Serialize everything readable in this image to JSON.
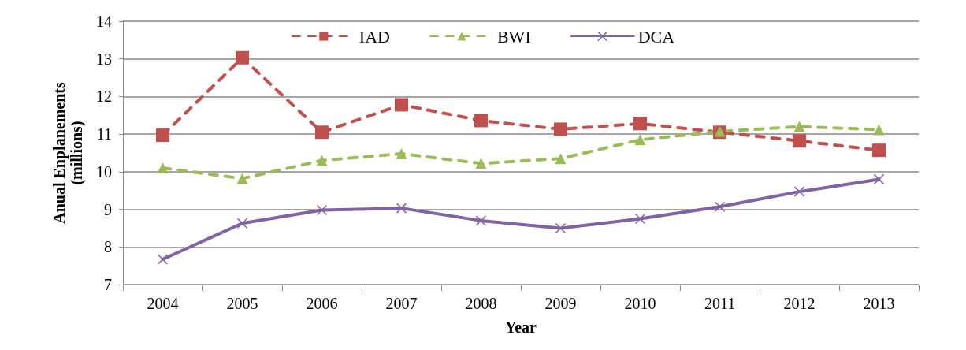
{
  "chart_data": {
    "type": "line",
    "xlabel": "Year",
    "ylabel": "Anual Enplanements\n(millions)",
    "categories": [
      "2004",
      "2005",
      "2006",
      "2007",
      "2008",
      "2009",
      "2010",
      "2011",
      "2012",
      "2013"
    ],
    "series": [
      {
        "name": "IAD",
        "color": "#c0504d",
        "marker": "square",
        "line_style": "dashed",
        "values": [
          10.97,
          13.03,
          11.05,
          11.78,
          11.36,
          11.13,
          11.28,
          11.05,
          10.82,
          10.57
        ]
      },
      {
        "name": "BWI",
        "color": "#9bbb59",
        "marker": "triangle",
        "line_style": "dashed",
        "values": [
          10.1,
          9.82,
          10.3,
          10.48,
          10.22,
          10.35,
          10.85,
          11.07,
          11.2,
          11.12
        ]
      },
      {
        "name": "DCA",
        "color": "#8064a2",
        "marker": "cross",
        "line_style": "solid",
        "values": [
          7.67,
          8.63,
          8.98,
          9.03,
          8.7,
          8.5,
          8.75,
          9.07,
          9.47,
          9.8
        ]
      }
    ],
    "ylim": [
      7,
      14
    ],
    "yticks": [
      7,
      8,
      9,
      10,
      11,
      12,
      13,
      14
    ],
    "grid": "y",
    "legend": "top"
  }
}
